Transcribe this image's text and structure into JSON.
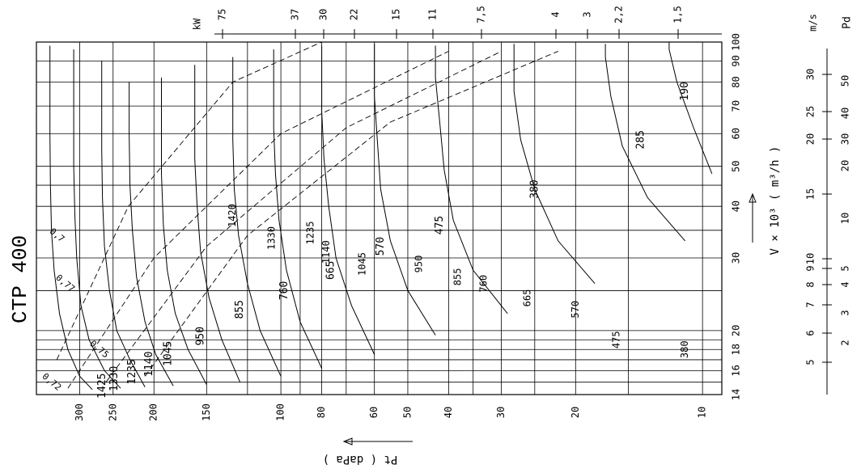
{
  "chart_data": {
    "type": "line",
    "title": "CTP 400",
    "xlabel": "V × 10³ ( m³/h )",
    "ylabel": "Pt ( daPa )",
    "speed_unit": "m/s",
    "dyn_pressure_unit": "Pd",
    "power_unit": "kW",
    "x_scale": "log",
    "y_scale": "log",
    "xlim": [
      14,
      100
    ],
    "ylim": [
      9,
      380
    ],
    "x_ticks": [
      {
        "value": 14,
        "label": "14"
      },
      {
        "value": 16,
        "label": "16"
      },
      {
        "value": 18,
        "label": "18"
      },
      {
        "value": 20,
        "label": "20"
      },
      {
        "value": 30,
        "label": "30"
      },
      {
        "value": 40,
        "label": "40"
      },
      {
        "value": 50,
        "label": "50"
      },
      {
        "value": 60,
        "label": "60"
      },
      {
        "value": 70,
        "label": "70"
      },
      {
        "value": 80,
        "label": "80"
      },
      {
        "value": 90,
        "label": "90"
      },
      {
        "value": 100,
        "label": "100"
      }
    ],
    "y_ticks": [
      {
        "value": 300,
        "label": "300"
      },
      {
        "value": 250,
        "label": "250"
      },
      {
        "value": 200,
        "label": "200"
      },
      {
        "value": 150,
        "label": "150"
      },
      {
        "value": 100,
        "label": "100"
      },
      {
        "value": 80,
        "label": "80"
      },
      {
        "value": 60,
        "label": "60"
      },
      {
        "value": 50,
        "label": "50"
      },
      {
        "value": 40,
        "label": "40"
      },
      {
        "value": 30,
        "label": "30"
      },
      {
        "value": 20,
        "label": "20"
      },
      {
        "value": 10,
        "label": "10"
      }
    ],
    "speed_ticks": [
      {
        "value": 5,
        "label": "5"
      },
      {
        "value": 6,
        "label": "6"
      },
      {
        "value": 7,
        "label": "7"
      },
      {
        "value": 8,
        "label": "8"
      },
      {
        "value": 9,
        "label": "9"
      },
      {
        "value": 10,
        "label": "10"
      },
      {
        "value": 15,
        "label": "15"
      },
      {
        "value": 20,
        "label": "20"
      },
      {
        "value": 25,
        "label": "25"
      },
      {
        "value": 30,
        "label": "30"
      }
    ],
    "dyn_pressure_ticks": [
      {
        "value": 2,
        "label": "2"
      },
      {
        "value": 3,
        "label": "3"
      },
      {
        "value": 4,
        "label": "4"
      },
      {
        "value": 5,
        "label": "5"
      },
      {
        "value": 10,
        "label": "10"
      },
      {
        "value": 20,
        "label": "20"
      },
      {
        "value": 30,
        "label": "30"
      },
      {
        "value": 40,
        "label": "40"
      },
      {
        "value": 50,
        "label": "50"
      }
    ],
    "power_ticks": [
      {
        "value": 75,
        "label": "75"
      },
      {
        "value": 37,
        "label": "37"
      },
      {
        "value": 30,
        "label": "30"
      },
      {
        "value": 22,
        "label": "22"
      },
      {
        "value": 15,
        "label": "15"
      },
      {
        "value": 11,
        "label": "11"
      },
      {
        "value": 7.5,
        "label": "7,5"
      },
      {
        "value": 4,
        "label": "4"
      },
      {
        "value": 3,
        "label": "3"
      },
      {
        "value": 2.2,
        "label": "2,2"
      },
      {
        "value": 1.5,
        "label": "1,5"
      }
    ],
    "efficiency_labels": [
      {
        "label": "0,7",
        "x": 34,
        "y": 340
      },
      {
        "label": "0,75",
        "x": 18,
        "y": 270
      },
      {
        "label": "0,77",
        "x": 26,
        "y": 325
      },
      {
        "label": "0,72",
        "x": 15,
        "y": 350
      }
    ],
    "speed_labels": [
      {
        "label": "1425",
        "x": 14.7,
        "y": 265
      },
      {
        "label": "1330",
        "x": 15.3,
        "y": 248
      },
      {
        "label": "1235",
        "x": 15.9,
        "y": 225
      },
      {
        "label": "1140",
        "x": 16.6,
        "y": 205
      },
      {
        "label": "1045",
        "x": 17.6,
        "y": 185
      },
      {
        "label": "950",
        "x": 19.4,
        "y": 155
      },
      {
        "label": "855",
        "x": 22.5,
        "y": 125
      },
      {
        "label": "760",
        "x": 25,
        "y": 98
      },
      {
        "label": "665",
        "x": 28,
        "y": 76
      },
      {
        "label": "570",
        "x": 32,
        "y": 58
      },
      {
        "label": "475",
        "x": 36,
        "y": 42
      },
      {
        "label": "380",
        "x": 44,
        "y": 25
      },
      {
        "label": "285",
        "x": 58,
        "y": 14
      },
      {
        "label": "190",
        "x": 76,
        "y": 11
      }
    ],
    "speed_labels_inner": [
      {
        "label": "1420",
        "x": 38,
        "y": 130
      },
      {
        "label": "1330",
        "x": 33.5,
        "y": 105
      },
      {
        "label": "1235",
        "x": 34.5,
        "y": 85
      },
      {
        "label": "1140",
        "x": 31,
        "y": 78
      },
      {
        "label": "1045",
        "x": 29,
        "y": 64
      },
      {
        "label": "950",
        "x": 29,
        "y": 47
      },
      {
        "label": "855",
        "x": 27,
        "y": 38
      },
      {
        "label": "760",
        "x": 26,
        "y": 33
      },
      {
        "label": "665",
        "x": 24,
        "y": 26
      },
      {
        "label": "570",
        "x": 22.5,
        "y": 20
      },
      {
        "label": "475",
        "x": 19,
        "y": 16
      },
      {
        "label": "380",
        "x": 18,
        "y": 11
      }
    ],
    "series": [
      {
        "rpm": 1425,
        "x": [
          14.4,
          15.5,
          18,
          22,
          28,
          35,
          45,
          60,
          80,
          98
        ],
        "y": [
          280,
          300,
          320,
          335,
          345,
          350,
          352,
          353,
          353,
          353
        ]
      },
      {
        "rpm": 1330,
        "x": [
          14.5,
          16,
          19,
          23,
          30,
          38,
          50,
          65,
          85,
          96
        ],
        "y": [
          240,
          262,
          285,
          298,
          305,
          308,
          310,
          310,
          310,
          310
        ]
      },
      {
        "rpm": 1235,
        "x": [
          14.6,
          17,
          20,
          25,
          32,
          42,
          55,
          72,
          90
        ],
        "y": [
          210,
          228,
          245,
          255,
          262,
          265,
          266,
          266,
          266
        ]
      },
      {
        "rpm": 1140,
        "x": [
          14.7,
          17.5,
          21,
          27,
          35,
          45,
          60,
          80
        ],
        "y": [
          180,
          198,
          210,
          220,
          225,
          228,
          229,
          229
        ]
      },
      {
        "rpm": 1045,
        "x": [
          14.8,
          18,
          22,
          28,
          36,
          48,
          64,
          82
        ],
        "y": [
          150,
          166,
          178,
          186,
          190,
          192,
          192,
          192
        ]
      },
      {
        "rpm": 950,
        "x": [
          15,
          19,
          24,
          31,
          40,
          52,
          70,
          88
        ],
        "y": [
          125,
          138,
          148,
          155,
          158,
          160,
          160,
          160
        ]
      },
      {
        "rpm": 855,
        "x": [
          15.5,
          20,
          26,
          34,
          44,
          58,
          76,
          92
        ],
        "y": [
          100,
          112,
          120,
          126,
          129,
          130,
          130,
          130
        ]
      },
      {
        "rpm": 760,
        "x": [
          16.2,
          21,
          28,
          37,
          48,
          62,
          80,
          96
        ],
        "y": [
          80,
          90,
          97,
          101,
          103,
          104,
          104,
          104
        ]
      },
      {
        "rpm": 665,
        "x": [
          17.5,
          23,
          30,
          40,
          52,
          68,
          86,
          98
        ],
        "y": [
          60,
          68,
          74,
          77,
          79,
          80,
          80,
          80
        ]
      },
      {
        "rpm": 570,
        "x": [
          19.5,
          25,
          33,
          44,
          57,
          74,
          92,
          99
        ],
        "y": [
          43,
          50,
          55,
          58,
          59,
          60,
          60,
          60
        ]
      },
      {
        "rpm": 475,
        "x": [
          22,
          28,
          37,
          49,
          64,
          82,
          98
        ],
        "y": [
          29,
          35,
          39,
          41,
          42,
          43,
          43
        ]
      },
      {
        "rpm": 380,
        "x": [
          26,
          33,
          44,
          58,
          76,
          95,
          99
        ],
        "y": [
          18,
          22,
          25,
          27,
          28,
          28,
          28
        ]
      },
      {
        "rpm": 285,
        "x": [
          33,
          42,
          56,
          74,
          92,
          99
        ],
        "y": [
          11,
          13.5,
          15.5,
          16.5,
          17,
          17
        ]
      },
      {
        "rpm": 190,
        "x": [
          48,
          62,
          80,
          96,
          100
        ],
        "y": [
          9.5,
          10.5,
          11.5,
          12,
          12
        ]
      }
    ]
  }
}
